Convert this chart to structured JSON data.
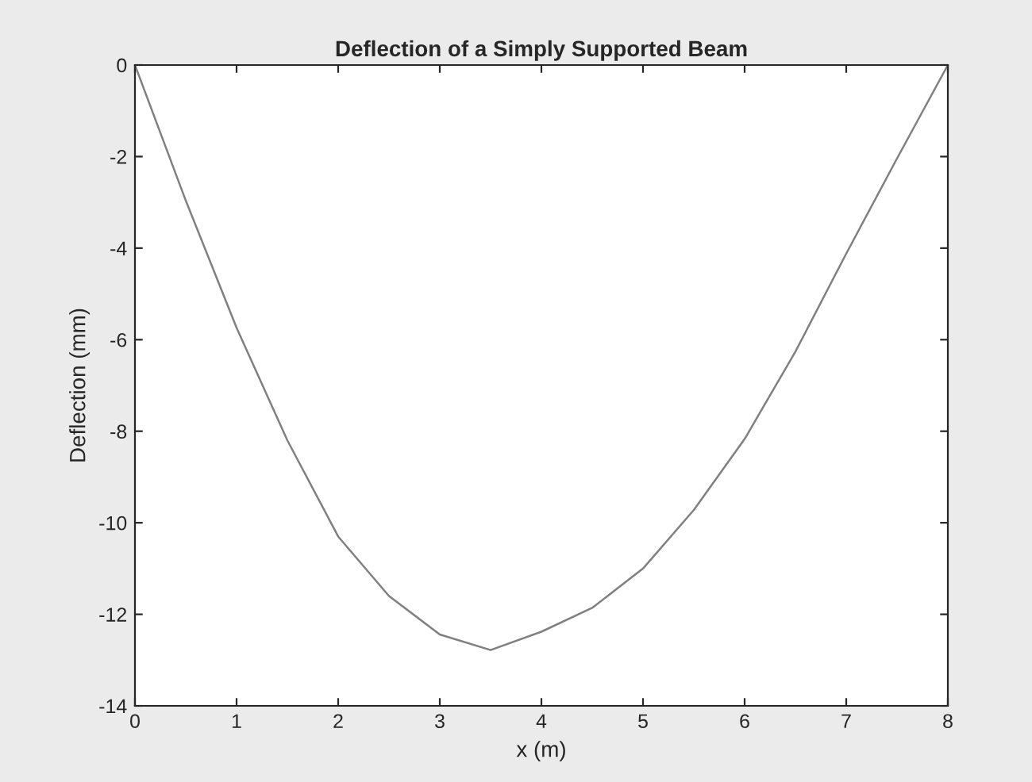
{
  "chart_data": {
    "type": "line",
    "title": "Deflection of a Simply Supported Beam",
    "xlabel": "x (m)",
    "ylabel": "Deflection (mm)",
    "series": [
      {
        "color": "#808080",
        "x": [
          0,
          0.5,
          1,
          1.5,
          2,
          2.5,
          3,
          3.5,
          4,
          4.5,
          5,
          5.5,
          6,
          6.5,
          7,
          7.5,
          8
        ],
        "values": [
          0,
          -2.96,
          -5.74,
          -8.2,
          -10.3,
          -11.6,
          -12.44,
          -12.78,
          -12.38,
          -11.86,
          -11.0,
          -9.72,
          -8.17,
          -6.26,
          -4.12,
          -2.04,
          0
        ]
      }
    ],
    "xlim": [
      0,
      8
    ],
    "xticks": [
      0,
      1,
      2,
      3,
      4,
      5,
      6,
      7,
      8
    ],
    "ylim": [
      -14,
      0
    ],
    "yticks": [
      -14,
      -12,
      -10,
      -8,
      -6,
      -4,
      -2,
      0
    ],
    "grid": false,
    "legend": false,
    "marker": "none",
    "line_style": "solid"
  }
}
